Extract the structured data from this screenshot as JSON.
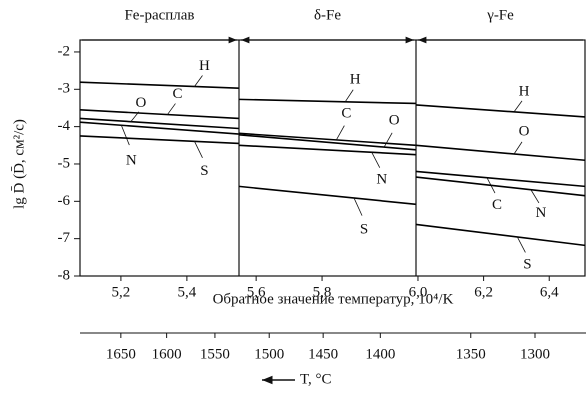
{
  "chart_data": {
    "type": "line",
    "ylabel": "lg D̄ (D̄, см²/с)",
    "xlabel": "Обратное значение температур, 10⁴/K",
    "ylim": [
      -8,
      -1.68
    ],
    "yticks": [
      -2,
      -3,
      -4,
      -5,
      -6,
      -7,
      -8
    ],
    "color": "#000000",
    "panels": [
      {
        "name": "Fe-расплав",
        "xlim": [
          5.076,
          5.558
        ],
        "xticks": [
          {
            "value": 5.2,
            "label": "5,2"
          },
          {
            "value": 5.4,
            "label": "5,4"
          }
        ],
        "x": [
          5.076,
          5.558
        ],
        "series": [
          {
            "name": "H",
            "values": [
              -2.81,
              -2.97
            ]
          },
          {
            "name": "C",
            "values": [
              -3.55,
              -3.78
            ]
          },
          {
            "name": "O",
            "values": [
              -3.78,
              -4.05
            ]
          },
          {
            "name": "N",
            "values": [
              -3.88,
              -4.2
            ]
          },
          {
            "name": "S",
            "values": [
              -4.25,
              -4.45
            ]
          }
        ]
      },
      {
        "name": "δ-Fe",
        "xlim": [
          5.548,
          6.085
        ],
        "xticks": [
          {
            "value": 5.6,
            "label": "5,6"
          },
          {
            "value": 5.8,
            "label": "5,8"
          }
        ],
        "x": [
          5.548,
          6.085
        ],
        "series": [
          {
            "name": "H",
            "values": [
              -3.27,
              -3.38
            ]
          },
          {
            "name": "C",
            "values": [
              -4.18,
              -4.5
            ]
          },
          {
            "name": "O",
            "values": [
              -4.22,
              -4.62
            ]
          },
          {
            "name": "N",
            "values": [
              -4.5,
              -4.75
            ]
          },
          {
            "name": "S",
            "values": [
              -5.6,
              -6.08
            ]
          }
        ]
      },
      {
        "name": "γ-Fe",
        "xlim": [
          5.994,
          6.509
        ],
        "xticks": [
          {
            "value": 6.0,
            "label": "6,0"
          },
          {
            "value": 6.2,
            "label": "6,2"
          },
          {
            "value": 6.4,
            "label": "6,4"
          }
        ],
        "x": [
          5.994,
          6.509
        ],
        "series": [
          {
            "name": "H",
            "values": [
              -3.42,
              -3.74
            ]
          },
          {
            "name": "O",
            "values": [
              -4.5,
              -4.9
            ]
          },
          {
            "name": "C",
            "values": [
              -5.2,
              -5.6
            ]
          },
          {
            "name": "N",
            "values": [
              -5.35,
              -5.85
            ]
          },
          {
            "name": "S",
            "values": [
              -6.62,
              -7.18
            ]
          }
        ]
      }
    ],
    "temperature_axis": {
      "label": "T, °C",
      "ticks": [
        1650,
        1600,
        1550,
        1500,
        1450,
        1400,
        1350,
        1300
      ]
    }
  }
}
